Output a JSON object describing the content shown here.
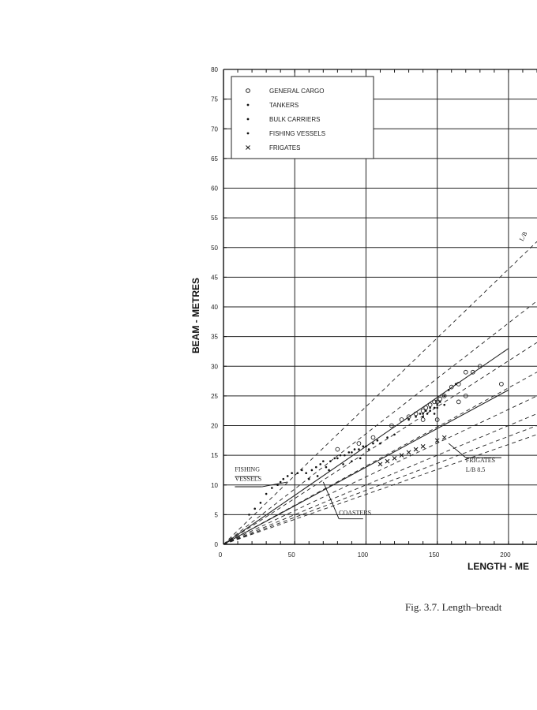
{
  "chart_data": {
    "type": "scatter",
    "xlabel": "LENGTH - ME",
    "ylabel": "BEAM - METRES",
    "xlim": [
      0,
      220
    ],
    "ylim": [
      0,
      80
    ],
    "x_ticks": [
      0,
      50,
      100,
      150,
      200
    ],
    "x_tick_labels": [
      "0",
      "50",
      "100",
      "150",
      "200"
    ],
    "y_ticks": [
      0,
      5,
      10,
      15,
      20,
      25,
      30,
      35,
      40,
      45,
      50,
      55,
      60,
      65,
      70,
      75,
      80
    ],
    "y_tick_labels": [
      "0",
      "5",
      "10",
      "15",
      "20",
      "25",
      "30",
      "35",
      "40",
      "45",
      "50",
      "55",
      "60",
      "65",
      "70",
      "75",
      "80"
    ],
    "grid": true,
    "legend_position": "top-left",
    "legend": [
      {
        "label": "GENERAL CARGO",
        "marker": "circle"
      },
      {
        "label": "TANKERS",
        "marker": "dot"
      },
      {
        "label": "BULK CARRIERS",
        "marker": "dot"
      },
      {
        "label": "FISHING VESSELS",
        "marker": "dot"
      },
      {
        "label": "FRIGATES",
        "marker": "cross"
      }
    ],
    "series": [
      {
        "name": "GENERAL CARGO",
        "marker": "circle",
        "points": [
          [
            80,
            16
          ],
          [
            95,
            17
          ],
          [
            105,
            18
          ],
          [
            118,
            20
          ],
          [
            125,
            21
          ],
          [
            130,
            21.5
          ],
          [
            135,
            22
          ],
          [
            140,
            22.5
          ],
          [
            142,
            23
          ],
          [
            145,
            23.5
          ],
          [
            148,
            24
          ],
          [
            150,
            24
          ],
          [
            152,
            24.5
          ],
          [
            155,
            25
          ],
          [
            160,
            26.5
          ],
          [
            165,
            27
          ],
          [
            170,
            29
          ],
          [
            175,
            29
          ],
          [
            180,
            30
          ],
          [
            195,
            27
          ],
          [
            165,
            24
          ],
          [
            170,
            25
          ],
          [
            140,
            21
          ],
          [
            150,
            21
          ]
        ]
      },
      {
        "name": "TANKERS",
        "marker": "dot",
        "points": [
          [
            130,
            21
          ],
          [
            138,
            22
          ],
          [
            145,
            23
          ],
          [
            150,
            23.5
          ],
          [
            152,
            24
          ],
          [
            155,
            25
          ],
          [
            158,
            26
          ],
          [
            163,
            27
          ],
          [
            140,
            22
          ],
          [
            148,
            23
          ],
          [
            135,
            21.5
          ],
          [
            142,
            22.5
          ]
        ]
      },
      {
        "name": "BULK CARRIERS",
        "marker": "dot",
        "points": [
          [
            140,
            21.5
          ],
          [
            145,
            22.5
          ],
          [
            150,
            23
          ],
          [
            155,
            23.5
          ],
          [
            148,
            22
          ],
          [
            143,
            22
          ]
        ]
      },
      {
        "name": "FISHING VESSELS",
        "marker": "dot",
        "points": [
          [
            18,
            5
          ],
          [
            22,
            6
          ],
          [
            26,
            7
          ],
          [
            30,
            8.5
          ],
          [
            34,
            9.5
          ],
          [
            38,
            10
          ],
          [
            40,
            10.5
          ],
          [
            42,
            11
          ],
          [
            45,
            11.5
          ],
          [
            48,
            12
          ],
          [
            52,
            12
          ],
          [
            55,
            12.5
          ],
          [
            58,
            12
          ],
          [
            62,
            12.5
          ],
          [
            65,
            13
          ],
          [
            68,
            13.5
          ],
          [
            70,
            14
          ],
          [
            72,
            13
          ],
          [
            75,
            14
          ],
          [
            78,
            14.5
          ],
          [
            80,
            14.5
          ],
          [
            82,
            15
          ],
          [
            85,
            15
          ],
          [
            88,
            15.5
          ],
          [
            90,
            15.5
          ],
          [
            92,
            16
          ],
          [
            95,
            16
          ],
          [
            98,
            16.5
          ],
          [
            100,
            16.5
          ],
          [
            102,
            16
          ],
          [
            105,
            17
          ],
          [
            108,
            17.5
          ],
          [
            110,
            17
          ],
          [
            115,
            18
          ],
          [
            120,
            18.5
          ],
          [
            60,
            11
          ],
          [
            66,
            11.5
          ],
          [
            74,
            12.5
          ],
          [
            84,
            13.5
          ],
          [
            90,
            14
          ],
          [
            96,
            14.5
          ]
        ]
      },
      {
        "name": "FRIGATES",
        "marker": "cross",
        "points": [
          [
            110,
            13.5
          ],
          [
            115,
            14
          ],
          [
            120,
            14.5
          ],
          [
            125,
            15
          ],
          [
            130,
            15.5
          ],
          [
            135,
            16
          ],
          [
            140,
            16.5
          ],
          [
            150,
            17.5
          ],
          [
            155,
            18
          ]
        ]
      }
    ],
    "lines": [
      {
        "style": "solid",
        "points": [
          [
            0,
            0
          ],
          [
            200,
            33
          ]
        ]
      },
      {
        "style": "solid",
        "points": [
          [
            0,
            0
          ],
          [
            200,
            26
          ]
        ]
      },
      {
        "style": "dashed",
        "points": [
          [
            0,
            0
          ],
          [
            220,
            51
          ]
        ]
      },
      {
        "style": "dashed",
        "points": [
          [
            0,
            0
          ],
          [
            220,
            41
          ]
        ]
      },
      {
        "style": "dashed",
        "points": [
          [
            0,
            0
          ],
          [
            220,
            34
          ]
        ]
      },
      {
        "style": "dashed",
        "points": [
          [
            0,
            0
          ],
          [
            220,
            29
          ]
        ]
      },
      {
        "style": "dashed",
        "points": [
          [
            0,
            0
          ],
          [
            220,
            25
          ]
        ]
      },
      {
        "style": "dashed",
        "points": [
          [
            0,
            0
          ],
          [
            220,
            22
          ]
        ]
      },
      {
        "style": "dashed",
        "points": [
          [
            0,
            0
          ],
          [
            220,
            20
          ]
        ]
      },
      {
        "style": "dashed",
        "points": [
          [
            0,
            0
          ],
          [
            220,
            18.5
          ]
        ]
      }
    ],
    "annotations": [
      {
        "text": "L/B",
        "x": 210,
        "y": 51,
        "rotate": true
      },
      {
        "text": "FISHING",
        "x": 8,
        "y": 12.3
      },
      {
        "text": "VESSELS",
        "x": 8,
        "y": 10.7
      },
      {
        "text": "COASTERS",
        "x": 81,
        "y": 5
      },
      {
        "text": "FRIGATES",
        "x": 170,
        "y": 13.8
      },
      {
        "text": "L/B  8.5",
        "x": 170,
        "y": 12.2
      }
    ]
  },
  "caption": "Fig. 3.7. Length–breadt"
}
